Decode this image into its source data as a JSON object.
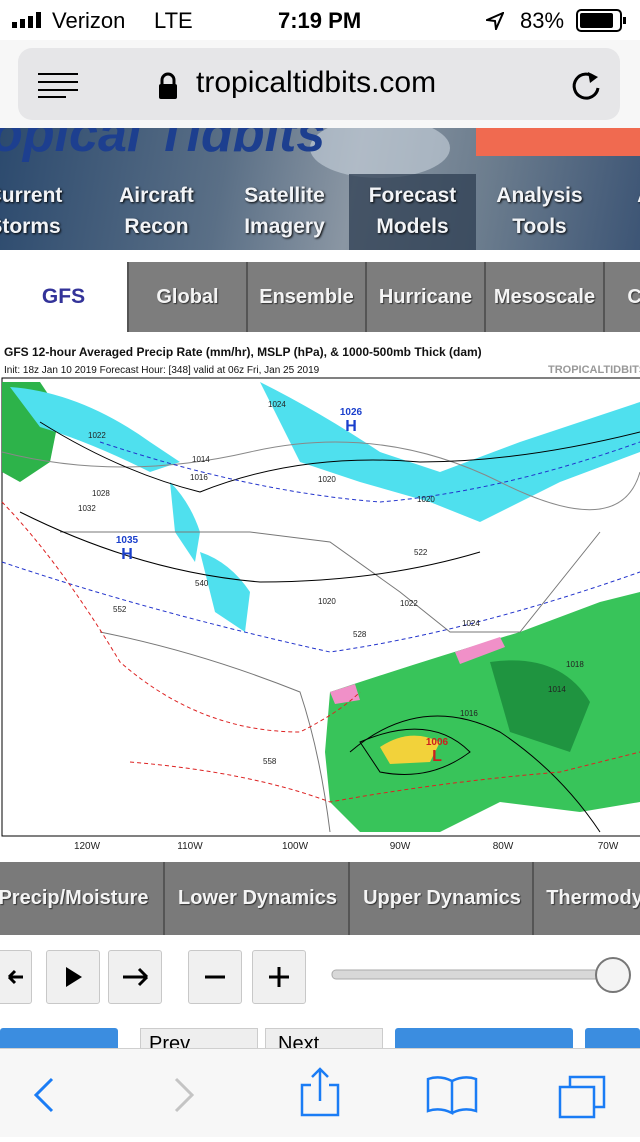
{
  "status_bar": {
    "carrier": "Verizon",
    "network": "LTE",
    "time": "7:19 PM",
    "battery": "83%"
  },
  "url_bar": {
    "url": "tropicaltidbits.com"
  },
  "site_header": {
    "logo": "Tropical Tidbits",
    "nav": [
      [
        "Current",
        "Storms"
      ],
      [
        "Aircraft",
        "Recon"
      ],
      [
        "Satellite",
        "Imagery"
      ],
      [
        "Forecast",
        "Models"
      ],
      [
        "Analysis",
        "Tools"
      ],
      [
        "About",
        ""
      ]
    ]
  },
  "model_tabs": [
    "GFS",
    "Global",
    "Ensemble",
    "Hurricane",
    "Mesoscale",
    "Climate"
  ],
  "map": {
    "title": "GFS 12-hour Averaged Precip Rate (mm/hr), MSLP (hPa), & 1000-500mb Thick (dam)",
    "init": "Init: 18z Jan 10 2019   Forecast Hour: [348]   valid at 06z Fri, Jan 25 2019",
    "watermark": "TROPICALTIDBITS.COM",
    "longitudes": [
      "120W",
      "110W",
      "100W",
      "90W",
      "80W",
      "70W"
    ],
    "centers": [
      {
        "value": "1035",
        "letter": "H"
      },
      {
        "value": "1026",
        "letter": "H"
      },
      {
        "value": "1006",
        "letter": "L"
      }
    ],
    "contour_labels": [
      "1024",
      "1020",
      "1014",
      "1028",
      "1032",
      "1016",
      "1022",
      "1020",
      "540",
      "528",
      "522",
      "1024",
      "1018",
      "1016",
      "1014",
      "1020",
      "1022",
      "558",
      "552"
    ]
  },
  "category_tabs": [
    "Precip/Moisture",
    "Lower Dynamics",
    "Upper Dynamics",
    "Thermodynamics"
  ],
  "pager": {
    "prev": "Prev",
    "next": "Next"
  }
}
